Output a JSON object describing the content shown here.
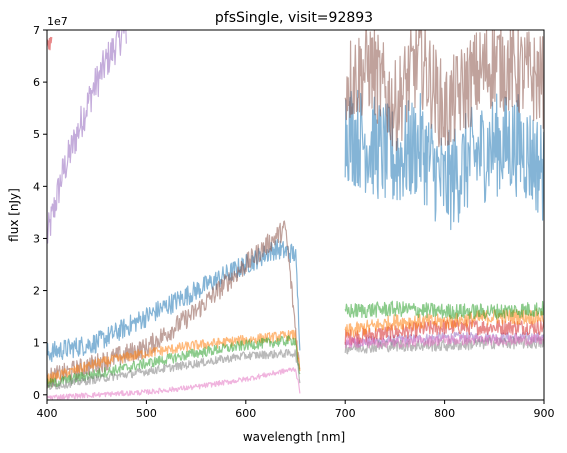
{
  "chart_data": {
    "type": "line",
    "title": "pfsSingle, visit=92893",
    "xlabel": "wavelength [nm]",
    "ylabel": "flux [nJy]",
    "y_multiplier_label": "1e7",
    "xlim": [
      400,
      900
    ],
    "ylim": [
      -0.1,
      7.0
    ],
    "y_units": "1e7 nJy",
    "x_ticks": [
      {
        "value": 400,
        "label": "400"
      },
      {
        "value": 500,
        "label": "500"
      },
      {
        "value": 600,
        "label": "600"
      },
      {
        "value": 700,
        "label": "700"
      },
      {
        "value": 800,
        "label": "800"
      },
      {
        "value": 900,
        "label": "900"
      }
    ],
    "y_ticks": [
      {
        "value": 0,
        "label": "0"
      },
      {
        "value": 1,
        "label": "1"
      },
      {
        "value": 2,
        "label": "2"
      },
      {
        "value": 3,
        "label": "3"
      },
      {
        "value": 4,
        "label": "4"
      },
      {
        "value": 5,
        "label": "5"
      },
      {
        "value": 6,
        "label": "6"
      },
      {
        "value": 7,
        "label": "7"
      }
    ],
    "grid": false,
    "legend": false,
    "series": [
      {
        "color": "#9467bd",
        "segments": [
          {
            "x": [
              400,
              415,
              430,
              445,
              460,
              475,
              480
            ],
            "y": [
              3.0,
              4.2,
              5.0,
              5.8,
              6.4,
              6.9,
              7.0
            ],
            "noise": 0.35
          },
          {
            "x": [
              700,
              750,
              800,
              850,
              900
            ],
            "y": [
              1.0,
              1.05,
              1.1,
              1.1,
              1.1
            ],
            "noise": 0.1
          }
        ]
      },
      {
        "color": "#d62728",
        "segments": [
          {
            "x": [
              400,
              405
            ],
            "y": [
              6.6,
              6.9
            ],
            "noise": 0.2
          },
          {
            "x": [
              700,
              750,
              800,
              850,
              900
            ],
            "y": [
              1.1,
              1.2,
              1.3,
              1.3,
              1.3
            ],
            "noise": 0.15
          }
        ]
      },
      {
        "color": "#1f77b4",
        "segments": [
          {
            "x": [
              400,
              450,
              500,
              550,
              600,
              630,
              650,
              655
            ],
            "y": [
              0.8,
              1.0,
              1.5,
              2.0,
              2.5,
              2.8,
              2.7,
              0.8
            ],
            "noise": 0.2
          },
          {
            "x": [
              700,
              725,
              750,
              775,
              800,
              825,
              850,
              875,
              900
            ],
            "y": [
              5.1,
              4.8,
              4.5,
              4.8,
              4.0,
              4.5,
              4.8,
              4.8,
              4.3
            ],
            "noise": 1.0
          }
        ]
      },
      {
        "color": "#8c564b",
        "segments": [
          {
            "x": [
              400,
              450,
              500,
              550,
              600,
              640,
              655
            ],
            "y": [
              0.3,
              0.6,
              0.9,
              1.6,
              2.5,
              3.2,
              0.3
            ],
            "noise": 0.2
          },
          {
            "x": [
              700,
              725,
              750,
              775,
              800,
              825,
              850,
              875,
              900
            ],
            "y": [
              6.0,
              6.3,
              5.5,
              6.5,
              5.4,
              6.0,
              6.4,
              6.2,
              6.0
            ],
            "noise": 0.9
          }
        ]
      },
      {
        "color": "#ff7f0e",
        "segments": [
          {
            "x": [
              400,
              450,
              500,
              550,
              600,
              650,
              655
            ],
            "y": [
              0.3,
              0.6,
              0.8,
              0.95,
              1.05,
              1.15,
              0.3
            ],
            "noise": 0.1
          },
          {
            "x": [
              700,
              750,
              800,
              850,
              900
            ],
            "y": [
              1.2,
              1.4,
              1.4,
              1.5,
              1.5
            ],
            "noise": 0.15
          }
        ]
      },
      {
        "color": "#2ca02c",
        "segments": [
          {
            "x": [
              400,
              450,
              500,
              550,
              600,
              650,
              655
            ],
            "y": [
              0.2,
              0.4,
              0.6,
              0.8,
              0.95,
              1.05,
              0.2
            ],
            "noise": 0.1
          },
          {
            "x": [
              700,
              750,
              800,
              850,
              900
            ],
            "y": [
              1.6,
              1.65,
              1.6,
              1.6,
              1.65
            ],
            "noise": 0.15
          }
        ]
      },
      {
        "color": "#7f7f7f",
        "segments": [
          {
            "x": [
              400,
              450,
              500,
              550,
              600,
              650,
              655
            ],
            "y": [
              0.15,
              0.3,
              0.45,
              0.6,
              0.75,
              0.8,
              0.2
            ],
            "noise": 0.08
          },
          {
            "x": [
              700,
              750,
              800,
              850,
              900
            ],
            "y": [
              0.9,
              0.95,
              0.95,
              1.0,
              1.0
            ],
            "noise": 0.12
          }
        ]
      },
      {
        "color": "#e377c2",
        "segments": [
          {
            "x": [
              400,
              450,
              500,
              550,
              600,
              650,
              655
            ],
            "y": [
              -0.05,
              0.0,
              0.05,
              0.15,
              0.3,
              0.5,
              0.0
            ],
            "noise": 0.05
          },
          {
            "x": [
              700,
              750,
              800,
              850,
              900
            ],
            "y": [
              1.0,
              1.0,
              1.05,
              1.05,
              1.05
            ],
            "noise": 0.1
          }
        ]
      }
    ]
  }
}
